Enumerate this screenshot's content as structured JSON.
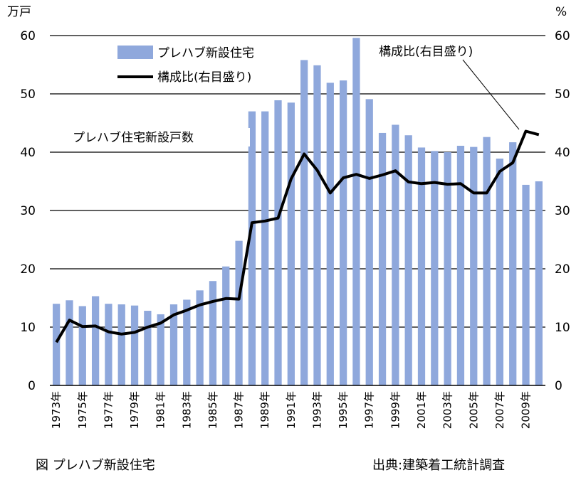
{
  "chart_data": {
    "type": "bar+line",
    "left_unit": "万戸",
    "right_unit": "%",
    "left_ylim": [
      0,
      60
    ],
    "right_ylim": [
      0,
      60
    ],
    "left_ticks": [
      "0",
      "10",
      "20",
      "30",
      "40",
      "50",
      "60"
    ],
    "right_ticks": [
      "0",
      "10",
      "20",
      "30",
      "40",
      "50",
      "60"
    ],
    "grid": true,
    "years": [
      1973,
      1974,
      1975,
      1976,
      1977,
      1978,
      1979,
      1980,
      1981,
      1982,
      1983,
      1984,
      1985,
      1986,
      1987,
      1988,
      1989,
      1990,
      1991,
      1992,
      1993,
      1994,
      1995,
      1996,
      1997,
      1998,
      1999,
      2000,
      2001,
      2002,
      2003,
      2004,
      2005,
      2006,
      2007,
      2008,
      2009,
      2010
    ],
    "x_tick_labels": [
      "1973年",
      "1975年",
      "1977年",
      "1979年",
      "1981年",
      "1983年",
      "1985年",
      "1987年",
      "1989年",
      "1991年",
      "1993年",
      "1995年",
      "1997年",
      "1999年",
      "2001年",
      "2003年",
      "2005年",
      "2007年",
      "2009年"
    ],
    "series": [
      {
        "name": "プレハブ新設住宅",
        "type": "bar",
        "axis": "left",
        "color": "#8FA8DC",
        "values": [
          14.0,
          14.6,
          13.6,
          15.3,
          14.0,
          13.9,
          13.7,
          12.8,
          12.2,
          13.9,
          14.7,
          16.3,
          17.9,
          20.4,
          24.8,
          47.0,
          47.0,
          48.9,
          48.5,
          55.8,
          54.9,
          51.9,
          52.3,
          59.6,
          49.1,
          43.3,
          44.7,
          42.9,
          40.8,
          40.2,
          40.0,
          41.1,
          40.9,
          42.6,
          38.9,
          41.7,
          34.4,
          35.0
        ]
      },
      {
        "name": "構成比(右目盛り)",
        "type": "line",
        "axis": "right",
        "color": "#000000",
        "values": [
          7.4,
          11.2,
          10.1,
          10.2,
          9.2,
          8.8,
          9.1,
          10.0,
          10.7,
          12.1,
          12.9,
          13.8,
          14.4,
          14.9,
          14.8,
          27.9,
          28.2,
          28.7,
          35.4,
          39.7,
          36.9,
          33.0,
          35.6,
          36.2,
          35.5,
          36.1,
          36.8,
          34.9,
          34.6,
          34.8,
          34.5,
          34.6,
          33.0,
          33.0,
          36.7,
          38.2,
          43.6,
          43.0
        ]
      }
    ],
    "legend": {
      "position": "top-left",
      "bar_label": "プレハブ新設住宅",
      "line_label": "構成比(右目盛り)"
    },
    "annotations": {
      "bar_series_label": "プレハブ住宅新設戸数",
      "line_series_label": "構成比(右目盛り)"
    }
  },
  "captions": {
    "figure": "図  プレハブ新設住宅",
    "source": "出典:建築着工統計調査"
  }
}
